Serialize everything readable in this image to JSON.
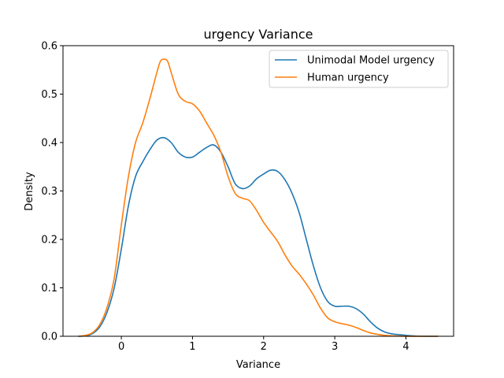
{
  "chart_data": {
    "type": "line",
    "title": "urgency Variance",
    "xlabel": "Variance",
    "ylabel": "Density",
    "xlim": [
      -0.82,
      4.67
    ],
    "ylim": [
      0,
      0.6
    ],
    "xticks": [
      "0",
      "1",
      "2",
      "3",
      "4"
    ],
    "yticks": [
      "0.0",
      "0.1",
      "0.2",
      "0.3",
      "0.4",
      "0.5",
      "0.6"
    ],
    "grid": false,
    "legend_position": "top-right",
    "series": [
      {
        "name": "Unimodal Model urgency",
        "color": "#1f77b4",
        "x": [
          -0.6,
          -0.5,
          -0.4,
          -0.3,
          -0.2,
          -0.1,
          0.0,
          0.1,
          0.2,
          0.3,
          0.4,
          0.5,
          0.6,
          0.7,
          0.8,
          0.9,
          1.0,
          1.1,
          1.2,
          1.3,
          1.4,
          1.5,
          1.6,
          1.7,
          1.8,
          1.9,
          2.0,
          2.1,
          2.2,
          2.3,
          2.4,
          2.5,
          2.6,
          2.7,
          2.8,
          2.9,
          3.0,
          3.1,
          3.2,
          3.3,
          3.4,
          3.5,
          3.6,
          3.7,
          3.8,
          4.0,
          4.2,
          4.45
        ],
        "y": [
          0.0,
          0.001,
          0.006,
          0.02,
          0.05,
          0.1,
          0.18,
          0.27,
          0.33,
          0.36,
          0.385,
          0.405,
          0.41,
          0.4,
          0.38,
          0.37,
          0.37,
          0.38,
          0.39,
          0.395,
          0.38,
          0.35,
          0.315,
          0.305,
          0.31,
          0.325,
          0.335,
          0.343,
          0.34,
          0.323,
          0.295,
          0.255,
          0.2,
          0.145,
          0.1,
          0.072,
          0.062,
          0.062,
          0.062,
          0.057,
          0.046,
          0.03,
          0.017,
          0.009,
          0.005,
          0.002,
          0.0,
          0.0
        ]
      },
      {
        "name": "Human urgency",
        "color": "#ff7f0e",
        "x": [
          -0.6,
          -0.5,
          -0.4,
          -0.3,
          -0.2,
          -0.1,
          0.0,
          0.1,
          0.2,
          0.3,
          0.4,
          0.5,
          0.55,
          0.6,
          0.65,
          0.7,
          0.8,
          0.9,
          1.0,
          1.1,
          1.2,
          1.3,
          1.4,
          1.5,
          1.6,
          1.7,
          1.8,
          1.9,
          2.0,
          2.1,
          2.2,
          2.3,
          2.4,
          2.5,
          2.6,
          2.7,
          2.8,
          2.9,
          3.0,
          3.1,
          3.2,
          3.3,
          3.4,
          3.5,
          3.6,
          3.7,
          3.8,
          4.0,
          4.2,
          4.45
        ],
        "y": [
          0.0,
          0.002,
          0.008,
          0.025,
          0.06,
          0.12,
          0.23,
          0.33,
          0.4,
          0.44,
          0.49,
          0.545,
          0.568,
          0.572,
          0.568,
          0.545,
          0.5,
          0.485,
          0.48,
          0.465,
          0.44,
          0.415,
          0.38,
          0.33,
          0.295,
          0.285,
          0.28,
          0.26,
          0.235,
          0.215,
          0.195,
          0.168,
          0.145,
          0.128,
          0.108,
          0.085,
          0.058,
          0.038,
          0.03,
          0.026,
          0.023,
          0.018,
          0.012,
          0.007,
          0.004,
          0.002,
          0.001,
          0.0,
          0.0,
          0.0
        ]
      }
    ]
  }
}
